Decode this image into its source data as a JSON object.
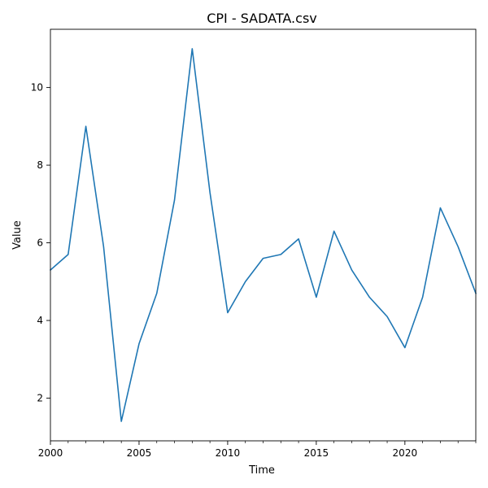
{
  "chart_data": {
    "type": "line",
    "title": "CPI - SADATA.csv",
    "xlabel": "Time",
    "ylabel": "Value",
    "xlim": [
      2000,
      2024
    ],
    "ylim": [
      0.9,
      11.5
    ],
    "x_ticks_major": [
      2000,
      2005,
      2010,
      2015,
      2020
    ],
    "x_ticks_minor": [
      2001,
      2002,
      2003,
      2004,
      2006,
      2007,
      2008,
      2009,
      2011,
      2012,
      2013,
      2014,
      2016,
      2017,
      2018,
      2019,
      2021,
      2022,
      2023,
      2024
    ],
    "y_ticks": [
      2,
      4,
      6,
      8,
      10
    ],
    "grid": false,
    "series": [
      {
        "color": "#1f77b4",
        "x": [
          2000,
          2001,
          2002,
          2003,
          2004,
          2005,
          2006,
          2007,
          2008,
          2009,
          2010,
          2011,
          2012,
          2013,
          2014,
          2015,
          2016,
          2017,
          2018,
          2019,
          2020,
          2021,
          2022,
          2023,
          2024
        ],
        "values": [
          5.3,
          5.7,
          9.0,
          5.9,
          1.4,
          3.4,
          4.7,
          7.1,
          11.0,
          7.3,
          4.2,
          5.0,
          5.6,
          5.7,
          6.1,
          4.6,
          6.3,
          5.3,
          4.6,
          4.1,
          3.3,
          4.6,
          6.9,
          5.9,
          4.7
        ]
      }
    ]
  }
}
